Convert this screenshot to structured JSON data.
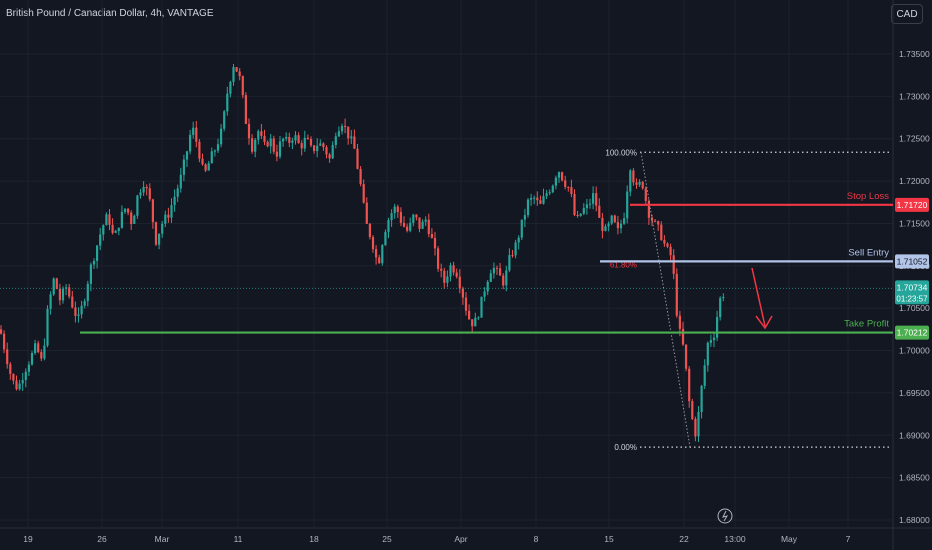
{
  "title": "British Pound / Canadian Dollar, 4h, VANTAGE",
  "currency_button": "CAD",
  "countdown": "01:23:57",
  "icon": "lightning-icon",
  "colors": {
    "background": "#131722",
    "up": "#26a69a",
    "down": "#ef5350",
    "grid": "#1e222d",
    "stop_loss": "#f23645",
    "sell_entry": "#b2c4e8",
    "take_profit": "#4caf50",
    "last_price": "#26a69a"
  },
  "chart_data": {
    "type": "candlestick",
    "ylim": [
      1.68,
      1.738
    ],
    "y_ticks": [
      "1.73500",
      "1.73000",
      "1.72500",
      "1.72000",
      "1.71500",
      "1.71000",
      "1.70500",
      "1.70000",
      "1.69500",
      "1.69000",
      "1.68500",
      "1.68000"
    ],
    "x_ticks": [
      "19",
      "26",
      "Mar",
      "11",
      "18",
      "25",
      "Apr",
      "8",
      "15",
      "22",
      "13:00",
      "May",
      "7"
    ],
    "price_path": [
      [
        0,
        1.7025
      ],
      [
        6,
        1.6995
      ],
      [
        12,
        1.6965
      ],
      [
        18,
        1.6955
      ],
      [
        24,
        1.6975
      ],
      [
        30,
        1.699
      ],
      [
        36,
        1.7005
      ],
      [
        42,
        1.6985
      ],
      [
        48,
        1.705
      ],
      [
        54,
        1.7085
      ],
      [
        60,
        1.706
      ],
      [
        66,
        1.7075
      ],
      [
        72,
        1.7055
      ],
      [
        78,
        1.7035
      ],
      [
        84,
        1.706
      ],
      [
        90,
        1.7095
      ],
      [
        96,
        1.712
      ],
      [
        102,
        1.7145
      ],
      [
        108,
        1.716
      ],
      [
        114,
        1.713
      ],
      [
        120,
        1.7155
      ],
      [
        126,
        1.717
      ],
      [
        132,
        1.715
      ],
      [
        138,
        1.7185
      ],
      [
        144,
        1.72
      ],
      [
        150,
        1.7175
      ],
      [
        156,
        1.713
      ],
      [
        162,
        1.715
      ],
      [
        168,
        1.716
      ],
      [
        174,
        1.718
      ],
      [
        180,
        1.72
      ],
      [
        186,
        1.723
      ],
      [
        192,
        1.7265
      ],
      [
        198,
        1.724
      ],
      [
        204,
        1.7205
      ],
      [
        210,
        1.7225
      ],
      [
        216,
        1.724
      ],
      [
        222,
        1.726
      ],
      [
        228,
        1.731
      ],
      [
        234,
        1.734
      ],
      [
        240,
        1.732
      ],
      [
        246,
        1.727
      ],
      [
        252,
        1.724
      ],
      [
        258,
        1.726
      ],
      [
        264,
        1.724
      ],
      [
        270,
        1.725
      ],
      [
        276,
        1.723
      ],
      [
        282,
        1.725
      ],
      [
        288,
        1.7245
      ],
      [
        294,
        1.7255
      ],
      [
        300,
        1.724
      ],
      [
        306,
        1.725
      ],
      [
        312,
        1.7235
      ],
      [
        318,
        1.7245
      ],
      [
        324,
        1.724
      ],
      [
        330,
        1.7225
      ],
      [
        336,
        1.726
      ],
      [
        342,
        1.727
      ],
      [
        348,
        1.7255
      ],
      [
        354,
        1.724
      ],
      [
        360,
        1.72
      ],
      [
        366,
        1.715
      ],
      [
        372,
        1.713
      ],
      [
        378,
        1.71
      ],
      [
        384,
        1.714
      ],
      [
        390,
        1.716
      ],
      [
        396,
        1.717
      ],
      [
        402,
        1.715
      ],
      [
        408,
        1.714
      ],
      [
        414,
        1.716
      ],
      [
        420,
        1.7145
      ],
      [
        426,
        1.7155
      ],
      [
        432,
        1.713
      ],
      [
        438,
        1.71
      ],
      [
        444,
        1.708
      ],
      [
        450,
        1.71
      ],
      [
        456,
        1.7095
      ],
      [
        462,
        1.707
      ],
      [
        468,
        1.704
      ],
      [
        474,
        1.703
      ],
      [
        480,
        1.705
      ],
      [
        486,
        1.708
      ],
      [
        492,
        1.71
      ],
      [
        498,
        1.709
      ],
      [
        504,
        1.708
      ],
      [
        510,
        1.711
      ],
      [
        516,
        1.7125
      ],
      [
        522,
        1.715
      ],
      [
        528,
        1.7175
      ],
      [
        534,
        1.718
      ],
      [
        540,
        1.717
      ],
      [
        546,
        1.7185
      ],
      [
        552,
        1.7195
      ],
      [
        558,
        1.7215
      ],
      [
        564,
        1.72
      ],
      [
        570,
        1.719
      ],
      [
        576,
        1.715
      ],
      [
        582,
        1.7165
      ],
      [
        588,
        1.717
      ],
      [
        594,
        1.7185
      ],
      [
        600,
        1.715
      ],
      [
        606,
        1.714
      ],
      [
        612,
        1.7155
      ],
      [
        618,
        1.714
      ],
      [
        624,
        1.716
      ],
      [
        630,
        1.722
      ],
      [
        636,
        1.719
      ],
      [
        642,
        1.72
      ],
      [
        648,
        1.7165
      ],
      [
        654,
        1.715
      ],
      [
        660,
        1.714
      ],
      [
        666,
        1.712
      ],
      [
        672,
        1.711
      ],
      [
        678,
        1.703
      ],
      [
        684,
        1.7
      ],
      [
        690,
        1.693
      ],
      [
        696,
        1.69
      ],
      [
        702,
        1.696
      ],
      [
        708,
        1.701
      ],
      [
        714,
        1.702
      ],
      [
        720,
        1.706
      ],
      [
        726,
        1.7073
      ]
    ],
    "levels": [
      {
        "label": "Stop Loss",
        "value": "1.71720",
        "price": 1.7172,
        "color": "#f23645"
      },
      {
        "label": "Sell Entry",
        "value": "1.71052",
        "price": 1.71052,
        "color": "#b2c4e8"
      },
      {
        "label": "Take Profit",
        "value": "1.70212",
        "price": 1.70212,
        "color": "#4caf50"
      }
    ],
    "last_price": {
      "value": "1.70734",
      "price": 1.70734
    },
    "fibonacci": [
      {
        "label": "100.00%",
        "price": 1.7234
      },
      {
        "label": "61.80%",
        "price": 1.7104
      },
      {
        "label": "0.00%",
        "price": 1.6886
      }
    ]
  }
}
